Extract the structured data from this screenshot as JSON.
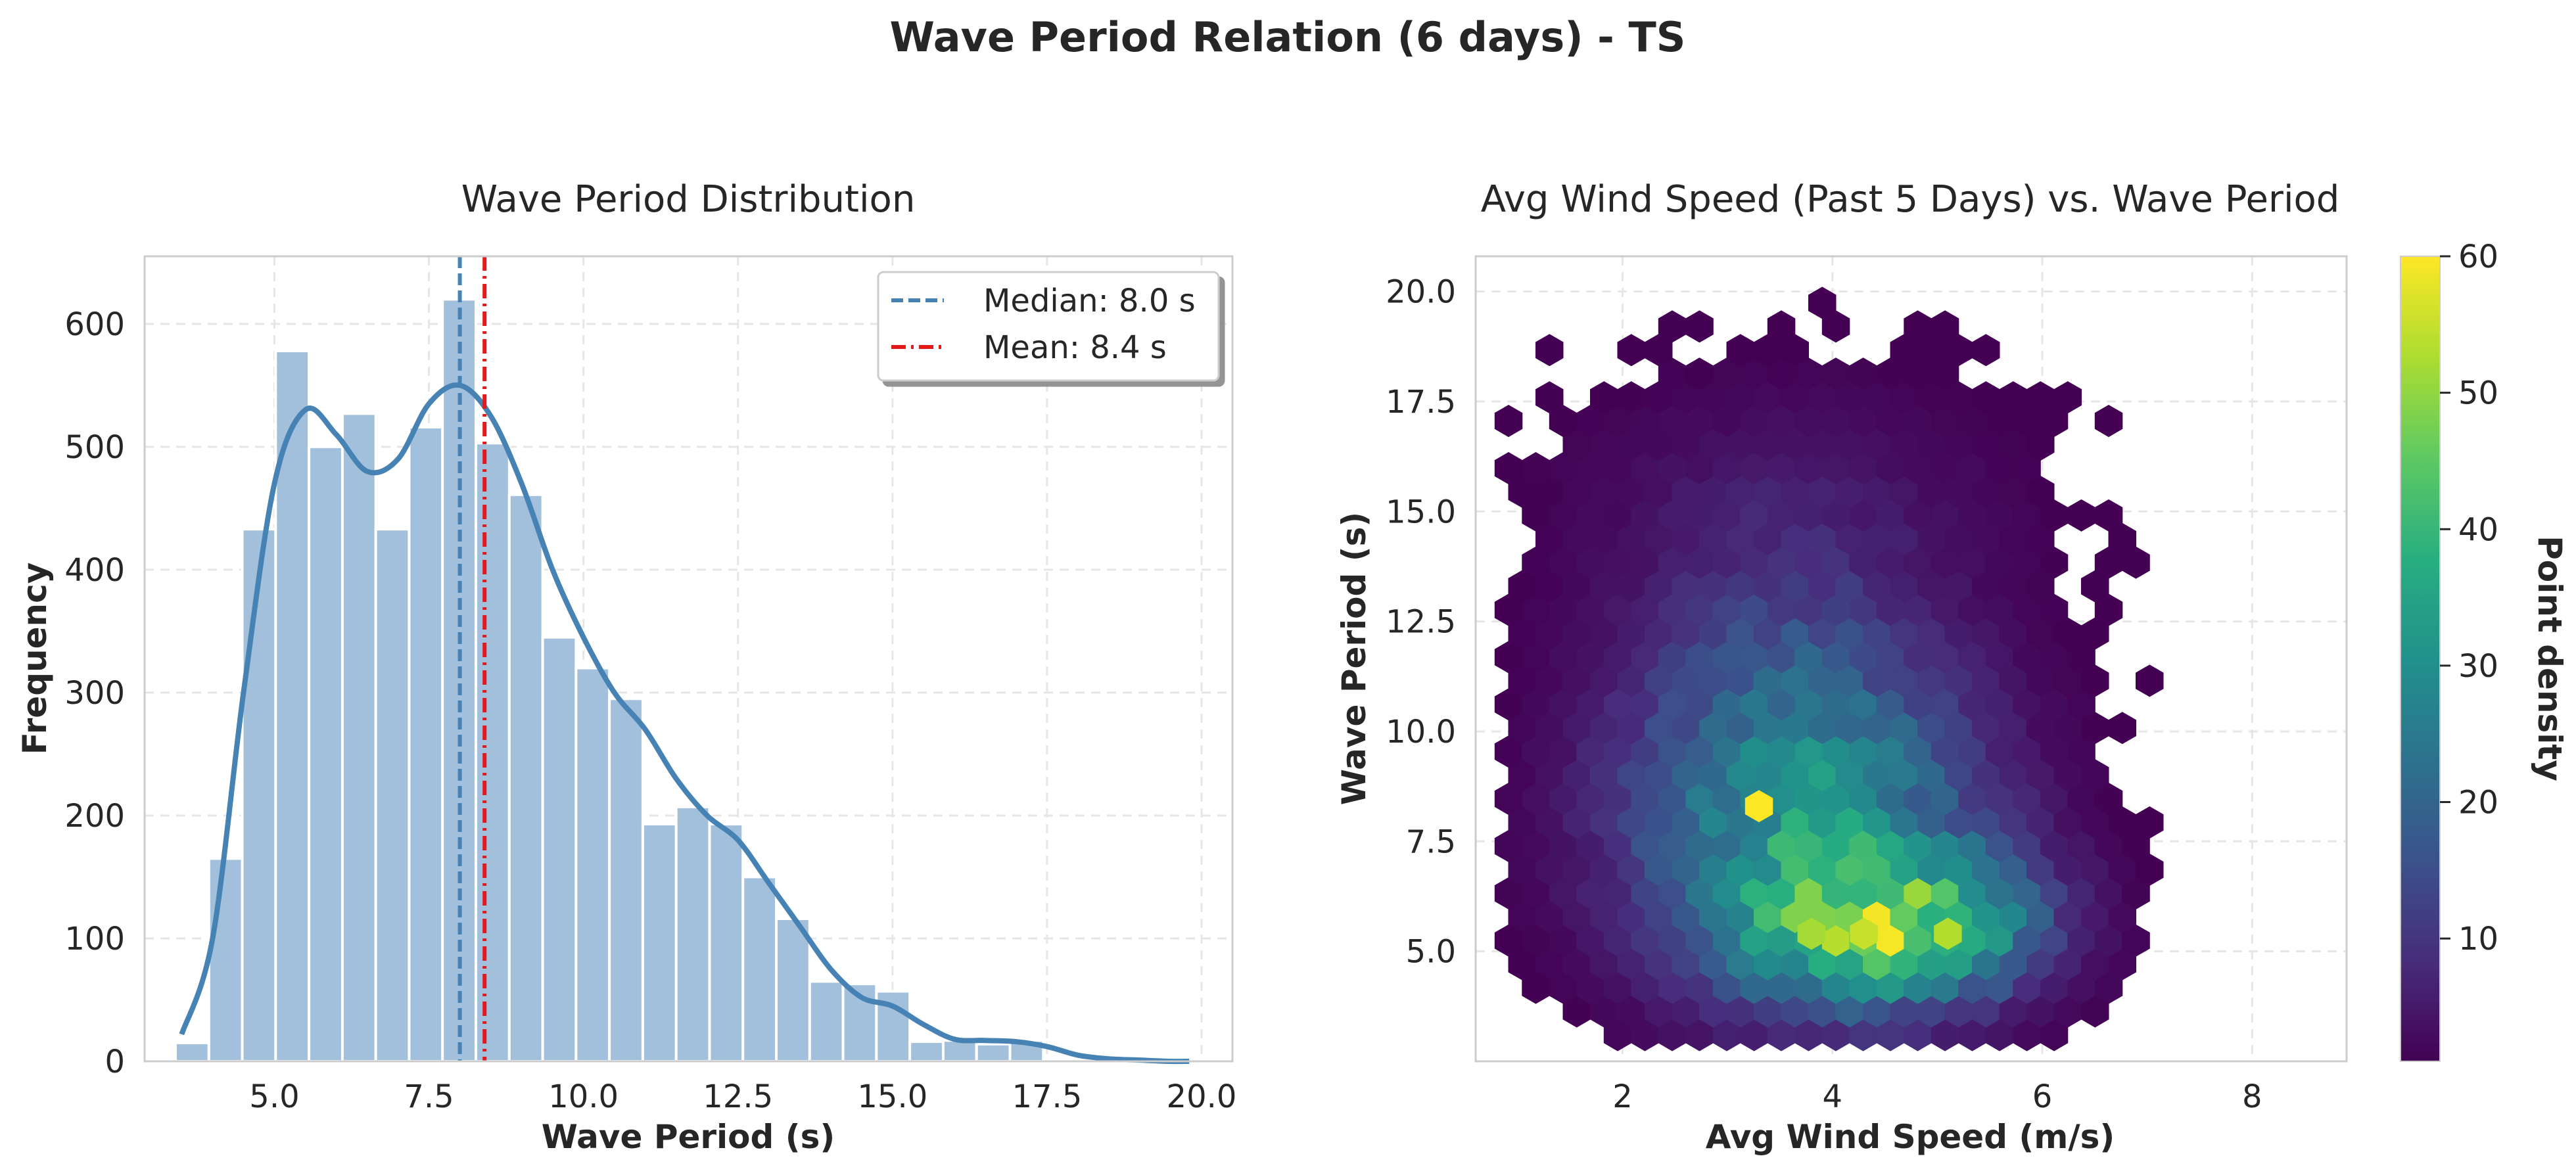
{
  "figure": {
    "suptitle": "Wave Period Relation (6 days) - TS"
  },
  "colors": {
    "hist_fill": "#a2bfdb",
    "kde_line": "#4682b4",
    "median_line": "#4682b4",
    "mean_line": "#e31a1c",
    "grid": "#e6e6e6",
    "frame": "#cccccc",
    "text": "#262626"
  },
  "chart_data": [
    {
      "type": "bar",
      "subtype": "histogram_with_kde",
      "title": "Wave Period Distribution",
      "xlabel": "Wave Period (s)",
      "ylabel": "Frequency",
      "xlim": [
        2.9,
        20.5
      ],
      "ylim": [
        0,
        655
      ],
      "xticks": [
        5.0,
        7.5,
        10.0,
        12.5,
        15.0,
        17.5,
        20.0
      ],
      "xtick_labels": [
        "5.0",
        "7.5",
        "10.0",
        "12.5",
        "15.0",
        "17.5",
        "20.0"
      ],
      "yticks": [
        0,
        100,
        200,
        300,
        400,
        500,
        600
      ],
      "ytick_labels": [
        "0",
        "100",
        "200",
        "300",
        "400",
        "500",
        "600"
      ],
      "grid": true,
      "bins": {
        "edges": [
          3.4,
          3.94,
          4.48,
          5.02,
          5.56,
          6.1,
          6.64,
          7.18,
          7.72,
          8.26,
          8.8,
          9.34,
          9.88,
          10.42,
          10.96,
          11.5,
          12.04,
          12.58,
          13.12,
          13.66,
          14.2,
          14.74,
          15.28,
          15.82,
          16.36,
          16.9,
          17.44,
          17.98,
          18.52,
          19.06,
          19.6
        ],
        "counts": [
          15,
          165,
          433,
          578,
          500,
          527,
          433,
          516,
          620,
          503,
          461,
          345,
          320,
          295,
          193,
          207,
          193,
          150,
          116,
          65,
          63,
          57,
          16,
          17,
          14,
          17,
          0,
          0,
          0,
          0
        ]
      },
      "kde": {
        "x": [
          3.5,
          4.0,
          4.5,
          5.0,
          5.5,
          6.0,
          6.5,
          7.0,
          7.5,
          8.0,
          8.5,
          9.0,
          9.5,
          10.0,
          10.5,
          11.0,
          11.5,
          12.0,
          12.5,
          13.0,
          13.5,
          14.0,
          14.5,
          15.0,
          15.5,
          16.0,
          16.5,
          17.0,
          17.5,
          18.0,
          18.5,
          19.0,
          19.5,
          19.8
        ],
        "y": [
          22,
          100,
          300,
          470,
          530,
          510,
          480,
          490,
          535,
          550,
          525,
          470,
          400,
          345,
          300,
          270,
          230,
          200,
          180,
          145,
          110,
          75,
          52,
          45,
          30,
          18,
          17,
          16,
          12,
          5,
          2,
          1,
          0,
          0
        ]
      },
      "vlines": [
        {
          "name": "Median",
          "x": 8.0,
          "label": "Median: 8.0 s",
          "style": "dashed"
        },
        {
          "name": "Mean",
          "x": 8.4,
          "label": "Mean: 8.4 s",
          "style": "dashdot"
        }
      ],
      "legend": {
        "placement": "top-right",
        "entries": [
          "Median: 8.0 s",
          "Mean: 8.4 s"
        ]
      }
    },
    {
      "type": "heatmap",
      "subtype": "hexbin",
      "title": "Avg Wind Speed (Past 5 Days) vs. Wave Period",
      "xlabel": "Avg Wind Speed (m/s)",
      "ylabel": "Wave Period (s)",
      "xlim": [
        0.6,
        8.9
      ],
      "ylim": [
        2.5,
        20.8
      ],
      "xticks": [
        2,
        4,
        6,
        8
      ],
      "xtick_labels": [
        "2",
        "4",
        "6",
        "8"
      ],
      "yticks": [
        5.0,
        7.5,
        10.0,
        12.5,
        15.0,
        17.5,
        20.0
      ],
      "ytick_labels": [
        "5.0",
        "7.5",
        "10.0",
        "12.5",
        "15.0",
        "17.5",
        "20.0"
      ],
      "grid": true,
      "colormap": "viridis",
      "colorbar": {
        "label": "Point density",
        "range": [
          1,
          60
        ],
        "ticks": [
          10,
          20,
          30,
          40,
          50,
          60
        ],
        "tick_labels": [
          "10",
          "20",
          "30",
          "40",
          "50",
          "60"
        ]
      },
      "density_peaks": [
        {
          "x": 3.3,
          "y": 8.3,
          "value": 60
        },
        {
          "x": 4.3,
          "y": 5.4,
          "value": 55
        },
        {
          "x": 3.8,
          "y": 5.4,
          "value": 52
        },
        {
          "x": 5.1,
          "y": 5.4,
          "value": 53
        }
      ]
    }
  ]
}
